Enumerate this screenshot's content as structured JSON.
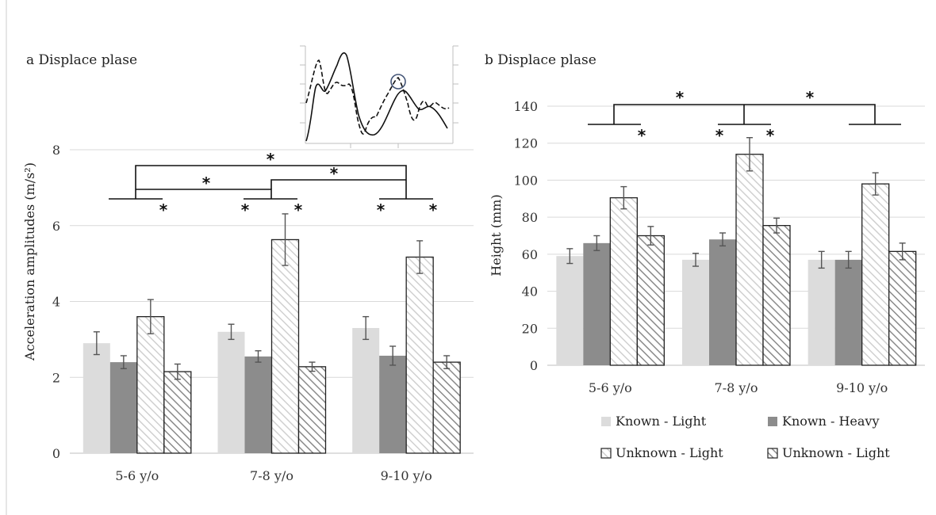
{
  "chart_data": [
    {
      "type": "bar",
      "title": "a Displace plase",
      "ylabel": "Acceleration amplitudes (m/s²)",
      "categories": [
        "5-6 y/o",
        "7-8 y/o",
        "9-10 y/o"
      ],
      "ylim": [
        0,
        8
      ],
      "yticks": [
        0,
        2,
        4,
        6,
        8
      ],
      "grid": true,
      "series": [
        {
          "name": "Known - Light",
          "values": [
            2.9,
            3.2,
            3.3
          ],
          "errors": [
            0.3,
            0.2,
            0.3
          ]
        },
        {
          "name": "Known - Heavy",
          "values": [
            2.4,
            2.55,
            2.57
          ],
          "errors": [
            0.17,
            0.15,
            0.25
          ]
        },
        {
          "name": "Unknown - Light",
          "values": [
            3.6,
            5.63,
            5.17
          ],
          "errors": [
            0.45,
            0.68,
            0.43
          ]
        },
        {
          "name": "Unknown - Light",
          "values": [
            2.15,
            2.28,
            2.4
          ],
          "errors": [
            0.2,
            0.12,
            0.17
          ]
        }
      ],
      "annotations": [
        "*",
        "*",
        "*",
        "*",
        "*",
        "*",
        "*",
        "*",
        "*"
      ],
      "inset": "acceleration trace (solid and dashed), circled peak"
    },
    {
      "type": "bar",
      "title": "b Displace plase",
      "ylabel": "Height (mm)",
      "categories": [
        "5-6 y/o",
        "7-8 y/o",
        "9-10 y/o"
      ],
      "ylim": [
        0,
        140
      ],
      "yticks": [
        0,
        20,
        40,
        60,
        80,
        100,
        120,
        140
      ],
      "grid": true,
      "series": [
        {
          "name": "Known - Light",
          "values": [
            59,
            57,
            57
          ],
          "errors": [
            4,
            3.5,
            4.5
          ]
        },
        {
          "name": "Known - Heavy",
          "values": [
            66,
            68,
            57
          ],
          "errors": [
            4,
            3.5,
            4.5
          ]
        },
        {
          "name": "Unknown - Light",
          "values": [
            90.5,
            114,
            98
          ],
          "errors": [
            6,
            9,
            6
          ]
        },
        {
          "name": "Unknown - Light",
          "values": [
            70,
            75.5,
            61.5
          ],
          "errors": [
            5,
            4,
            4.5
          ]
        }
      ],
      "annotations": [
        "*",
        "*",
        "*",
        "*",
        "*"
      ],
      "legend": {
        "position": "bottom",
        "entries": [
          "Known - Light",
          "Known - Heavy",
          "Unknown - Light",
          "Unknown - Light"
        ]
      }
    }
  ],
  "colors": {
    "known_light": "#dcdcdc",
    "known_heavy": "#8c8c8c",
    "unknown_light": "#ffffff",
    "unknown_hatched": "#ffffff",
    "grid": "#d9d9d9",
    "axis": "#bfbfbf",
    "error": "#555555"
  }
}
